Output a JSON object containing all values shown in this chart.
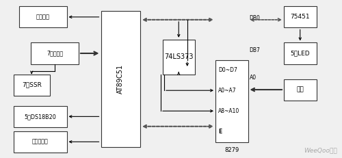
{
  "bg_color": "#f0f0f0",
  "box_edge": "#333333",
  "box_face": "#ffffff",
  "watermark": "WeeQoo维库",
  "watermark_color": "#aaaaaa",
  "at89c51": [
    0.295,
    0.07,
    0.115,
    0.86
  ],
  "ls373": [
    0.475,
    0.25,
    0.095,
    0.22
  ],
  "i8279": [
    0.63,
    0.38,
    0.095,
    0.52
  ],
  "u75451": [
    0.83,
    0.04,
    0.095,
    0.135
  ],
  "led5": [
    0.83,
    0.27,
    0.095,
    0.135
  ],
  "keyboard": [
    0.83,
    0.5,
    0.095,
    0.135
  ],
  "alarm": [
    0.055,
    0.04,
    0.14,
    0.135
  ],
  "gate7": [
    0.09,
    0.27,
    0.14,
    0.135
  ],
  "ssr7": [
    0.04,
    0.47,
    0.105,
    0.135
  ],
  "ds18b20": [
    0.04,
    0.67,
    0.155,
    0.135
  ],
  "watchdog": [
    0.04,
    0.83,
    0.155,
    0.135
  ],
  "labels_8279": [
    "D0~D7",
    "A0~A7",
    "A8~A10",
    "E"
  ],
  "labels_8279r": [
    "DB0",
    "DB7",
    "A0"
  ],
  "label_8279_name": "8279",
  "text_at89c51": "AT89C51",
  "text_ls373": "74LS373",
  "text_u75451": "75451",
  "text_led5": "5片LED",
  "text_keyboard": "键盘",
  "text_alarm": "报警电路",
  "text_gate7": "7个与非门",
  "text_ssr7": "7片SSR",
  "text_ds18b20": "5片DS18B20",
  "text_watchdog": "看门狗电路"
}
